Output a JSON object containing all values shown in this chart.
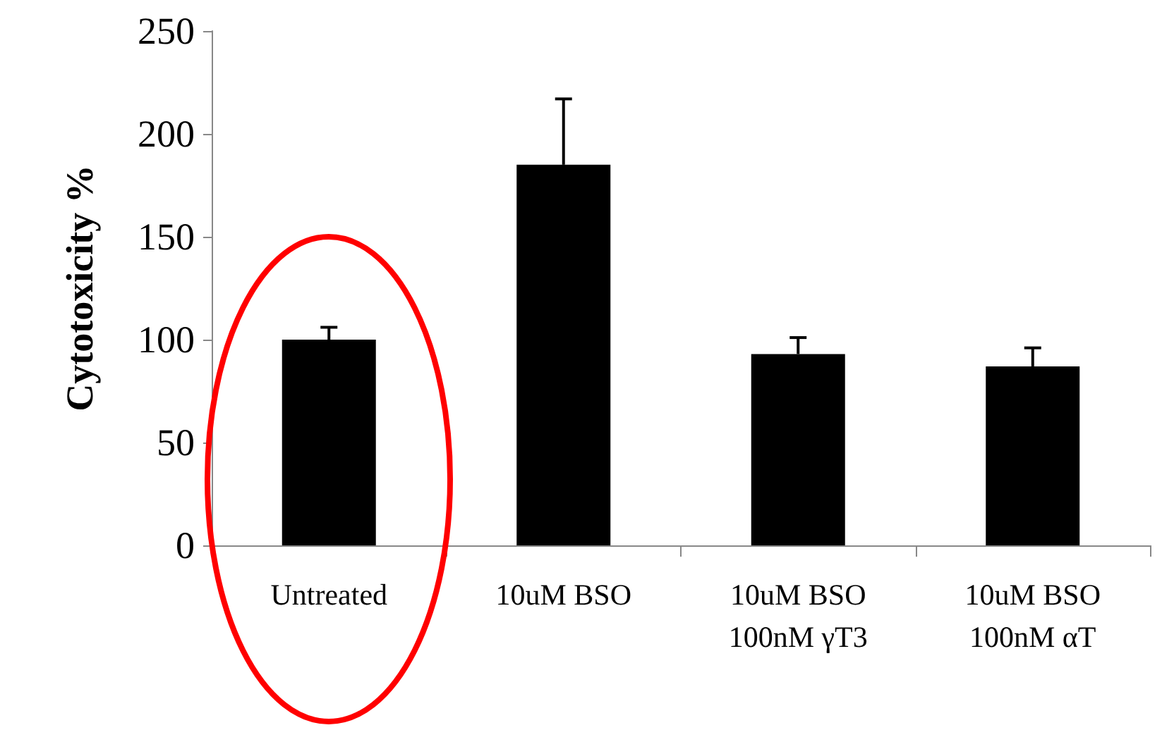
{
  "chart_data": {
    "type": "bar",
    "ylabel": "Cytotoxicity %",
    "categories": [
      "Untreated",
      "10uM BSO",
      "10uM BSO\n100nM γT3",
      "10uM BSO\n100nM αT"
    ],
    "values": [
      100,
      185,
      93,
      87
    ],
    "errors": [
      [
        100,
        106
      ],
      [
        185,
        217
      ],
      [
        93,
        101
      ],
      [
        87,
        96
      ]
    ],
    "color": "#000000",
    "ylim": [
      0,
      250
    ],
    "yticks": [
      0,
      50,
      100,
      150,
      200,
      250
    ]
  }
}
